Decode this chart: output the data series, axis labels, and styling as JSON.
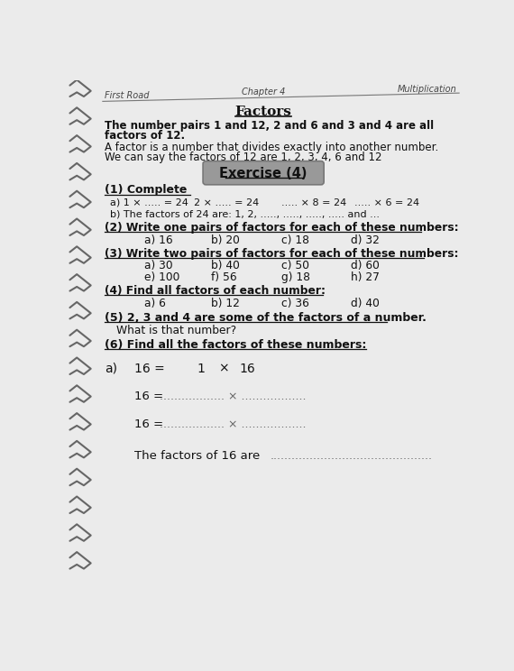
{
  "page_bg": "#ebebeb",
  "header_left": "First Road",
  "header_center": "Chapter 4",
  "header_right": "Multiplication",
  "title": "Factors",
  "intro1": "The number pairs 1 and 12, 2 and 6 and 3 and 4 are all",
  "intro2": "factors of 12.",
  "intro3": "A factor is a number that divides exactly into another number.",
  "intro4": "We can say the factors of 12 are 1, 2, 3, 4, 6 and 12",
  "exercise_label": "Exercise (4)",
  "sec1_title": "(1) Complete",
  "sec1a_parts": [
    "a) 1 × ..... = 24",
    "2 × ..... = 24",
    "..... × 8 = 24",
    "..... × 6 = 24"
  ],
  "sec1b": "b) The factors of 24 are: 1, 2, ....., ....., ....., ..... and ...",
  "sec2_title": "(2) Write one pairs of factors for each of these numbers:",
  "sec3_title": "(3) Write two pairs of factors for each of these numbers:",
  "sec4_title": "(4) Find all factors of each number:",
  "sec4_items": [
    "a) 6",
    "b) 12",
    "c) 36",
    "d) 40"
  ],
  "sec5_title": "(5) 2, 3 and 4 are some of the factors of a number.",
  "sec5_sub": "What is that number?",
  "sec6_title": "(6) Find all the factors of these numbers:",
  "exercise_box_color": "#999999",
  "spiral_color": "#666666",
  "text_color": "#111111",
  "cols2": [
    115,
    210,
    310,
    410
  ],
  "col_items2": [
    "a) 16",
    "b) 20",
    "c) 18",
    "d) 32"
  ],
  "col_items3a": [
    "a) 30",
    "b) 40",
    "c) 50",
    "d) 60"
  ],
  "col_items3b": [
    "e) 100",
    "f) 56",
    "g) 18",
    "h) 27"
  ]
}
